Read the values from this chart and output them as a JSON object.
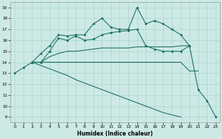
{
  "xlabel": "Humidex (Indice chaleur)",
  "bg_color": "#cce9e5",
  "grid_color": "#aad4ce",
  "line_color": "#1a6e65",
  "xlim": [
    -0.5,
    23.5
  ],
  "ylim": [
    8.5,
    19.5
  ],
  "xticks": [
    0,
    1,
    2,
    3,
    4,
    5,
    6,
    7,
    8,
    9,
    10,
    11,
    12,
    13,
    14,
    15,
    16,
    17,
    18,
    19,
    20,
    21,
    22,
    23
  ],
  "yticks": [
    9,
    10,
    11,
    12,
    13,
    14,
    15,
    16,
    17,
    18,
    19
  ],
  "line1_x": [
    0,
    1,
    2,
    3,
    4,
    5,
    6,
    7,
    8,
    9,
    10,
    11,
    12,
    13,
    14,
    15,
    16,
    17,
    18,
    19,
    20,
    21,
    22,
    23
  ],
  "line1_y": [
    13,
    13.5,
    14,
    14.8,
    15.5,
    16.5,
    16.4,
    16.5,
    16.5,
    17.5,
    18.0,
    17.2,
    17.0,
    17.0,
    19.0,
    17.5,
    17.8,
    17.5,
    17.0,
    16.5,
    15.5,
    11.5,
    10.5,
    9.0
  ],
  "line2_x": [
    2,
    3,
    4,
    5,
    6,
    7,
    8,
    9,
    10,
    11,
    12,
    13,
    14,
    15,
    16,
    17,
    18,
    19,
    20
  ],
  "line2_y": [
    14,
    14,
    15.0,
    16.2,
    16.0,
    16.4,
    16.0,
    16.1,
    16.5,
    16.7,
    16.8,
    16.9,
    17.0,
    15.5,
    15.2,
    15.0,
    15.0,
    15.0,
    15.5
  ],
  "line3_x": [
    2,
    3,
    4,
    5,
    6,
    7,
    8,
    9,
    10,
    11,
    12,
    13,
    14,
    15,
    16,
    17,
    18,
    19,
    20
  ],
  "line3_y": [
    14,
    14,
    14.5,
    14.8,
    15.0,
    15.0,
    15.1,
    15.2,
    15.3,
    15.3,
    15.3,
    15.3,
    15.4,
    15.4,
    15.4,
    15.4,
    15.4,
    15.5,
    15.5
  ],
  "line4_x": [
    2,
    3,
    4,
    5,
    6,
    7,
    8,
    9,
    10,
    11,
    12,
    13,
    14,
    15,
    16,
    17,
    18,
    19,
    20,
    21
  ],
  "line4_y": [
    14,
    14,
    14.0,
    14.0,
    14.0,
    14.0,
    14.0,
    14.0,
    14.0,
    14.0,
    14.0,
    14.0,
    14.0,
    14.0,
    14.0,
    14.0,
    14.0,
    14.0,
    13.2,
    13.2
  ],
  "line5_x": [
    2,
    3,
    4,
    5,
    6,
    7,
    8,
    9,
    10,
    11,
    12,
    13,
    14,
    15,
    16,
    17,
    18,
    19,
    20,
    21,
    22,
    23
  ],
  "line5_y": [
    14,
    13.7,
    13.4,
    13.1,
    12.8,
    12.4,
    12.1,
    11.8,
    11.5,
    11.2,
    10.9,
    10.6,
    10.3,
    10.0,
    9.7,
    9.4,
    9.2,
    9.0,
    null,
    null,
    null,
    null
  ]
}
